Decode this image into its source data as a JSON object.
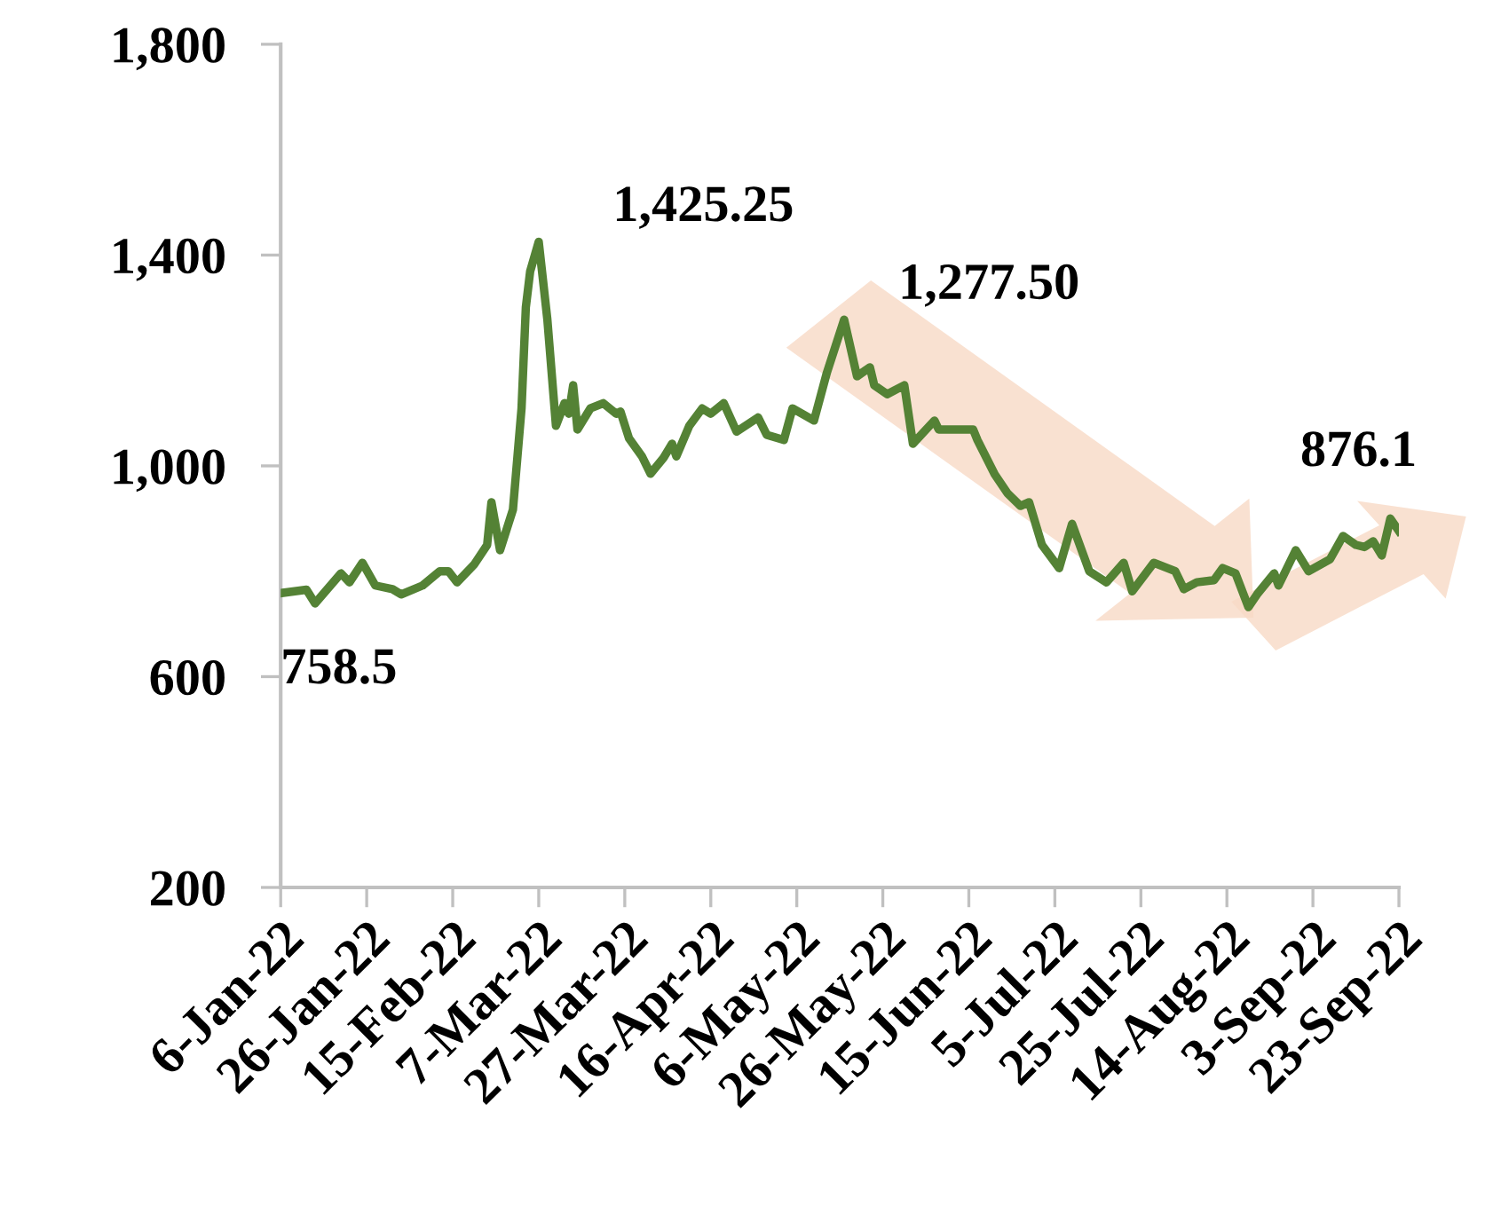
{
  "chart_data": {
    "type": "line",
    "x": [
      "2022-01-06",
      "2022-01-12",
      "2022-01-14",
      "2022-01-20",
      "2022-01-22",
      "2022-01-25",
      "2022-01-28",
      "2022-02-01",
      "2022-02-03",
      "2022-02-08",
      "2022-02-12",
      "2022-02-14",
      "2022-02-16",
      "2022-02-20",
      "2022-02-23",
      "2022-02-24",
      "2022-02-26",
      "2022-03-01",
      "2022-03-03",
      "2022-03-04",
      "2022-03-05",
      "2022-03-07",
      "2022-03-09",
      "2022-03-11",
      "2022-03-13",
      "2022-03-14",
      "2022-03-15",
      "2022-03-16",
      "2022-03-19",
      "2022-03-22",
      "2022-03-25",
      "2022-03-26",
      "2022-03-28",
      "2022-03-31",
      "2022-04-02",
      "2022-04-05",
      "2022-04-07",
      "2022-04-08",
      "2022-04-11",
      "2022-04-14",
      "2022-04-16",
      "2022-04-19",
      "2022-04-22",
      "2022-04-27",
      "2022-04-29",
      "2022-05-03",
      "2022-05-05",
      "2022-05-10",
      "2022-05-13",
      "2022-05-17",
      "2022-05-20",
      "2022-05-23",
      "2022-05-24",
      "2022-05-27",
      "2022-05-31",
      "2022-06-02",
      "2022-06-07",
      "2022-06-08",
      "2022-06-16",
      "2022-06-17",
      "2022-06-21",
      "2022-06-24",
      "2022-06-27",
      "2022-06-29",
      "2022-07-02",
      "2022-07-06",
      "2022-07-09",
      "2022-07-13",
      "2022-07-17",
      "2022-07-21",
      "2022-07-23",
      "2022-07-28",
      "2022-08-02",
      "2022-08-04",
      "2022-08-07",
      "2022-08-11",
      "2022-08-13",
      "2022-08-16",
      "2022-08-19",
      "2022-08-21",
      "2022-08-25",
      "2022-08-26",
      "2022-08-30",
      "2022-09-02",
      "2022-09-07",
      "2022-09-10",
      "2022-09-13",
      "2022-09-15",
      "2022-09-17",
      "2022-09-19",
      "2022-09-21",
      "2022-09-23"
    ],
    "series": [
      {
        "color": "#548235",
        "values": [
          758.5,
          765,
          739,
          796,
          779,
          816,
          773,
          766,
          756,
          773,
          800,
          800,
          779,
          813,
          850,
          931,
          840,
          917,
          1109,
          1301,
          1369,
          1425.25,
          1278,
          1076,
          1119,
          1099,
          1153,
          1069,
          1109,
          1119,
          1099,
          1103,
          1052,
          1018,
          985,
          1015,
          1042,
          1018,
          1076,
          1109,
          1099,
          1119,
          1065,
          1092,
          1059,
          1049,
          1109,
          1086,
          1177,
          1277.5,
          1170,
          1187,
          1153,
          1136,
          1153,
          1042,
          1086,
          1069,
          1069,
          1049,
          984,
          948,
          924,
          931,
          850,
          806,
          890,
          800,
          779,
          816,
          762,
          816,
          800,
          766,
          779,
          783,
          806,
          796,
          732,
          756,
          796,
          773,
          840,
          800,
          823,
          867,
          850,
          846,
          857,
          830,
          900,
          876.1
        ]
      }
    ],
    "xlim": [
      "2022-01-06",
      "2022-09-23"
    ],
    "xticks": [
      {
        "value": "2022-01-06",
        "label": "6-Jan-22"
      },
      {
        "value": "2022-01-26",
        "label": "26-Jan-22"
      },
      {
        "value": "2022-02-15",
        "label": "15-Feb-22"
      },
      {
        "value": "2022-03-07",
        "label": "7-Mar-22"
      },
      {
        "value": "2022-03-27",
        "label": "27-Mar-22"
      },
      {
        "value": "2022-04-16",
        "label": "16-Apr-22"
      },
      {
        "value": "2022-05-06",
        "label": "6-May-22"
      },
      {
        "value": "2022-05-26",
        "label": "26-May-22"
      },
      {
        "value": "2022-06-15",
        "label": "15-Jun-22"
      },
      {
        "value": "2022-07-05",
        "label": "5-Jul-22"
      },
      {
        "value": "2022-07-25",
        "label": "25-Jul-22"
      },
      {
        "value": "2022-08-14",
        "label": "14-Aug-22"
      },
      {
        "value": "2022-09-03",
        "label": "3-Sep-22"
      },
      {
        "value": "2022-09-23",
        "label": "23-Sep-22"
      }
    ],
    "ylim": [
      200,
      1800
    ],
    "yticks": [
      200,
      600,
      {
        "value": 1000,
        "label": "1,000"
      },
      {
        "value": 1400,
        "label": "1,400"
      },
      {
        "value": 1800,
        "label": "1,800"
      }
    ],
    "grid": false,
    "legend": false,
    "marker": "none",
    "line_style": "solid",
    "annotations": [
      {
        "text": "758.5",
        "x": "2022-01-06",
        "y": 758.5
      },
      {
        "text": "1,425.25",
        "x": "2022-03-07",
        "y": 1425.25
      },
      {
        "text": "1,277.50",
        "x": "2022-05-17",
        "y": 1277.5
      },
      {
        "text": "876.1",
        "x": "2022-09-23",
        "y": 876.1
      }
    ]
  }
}
